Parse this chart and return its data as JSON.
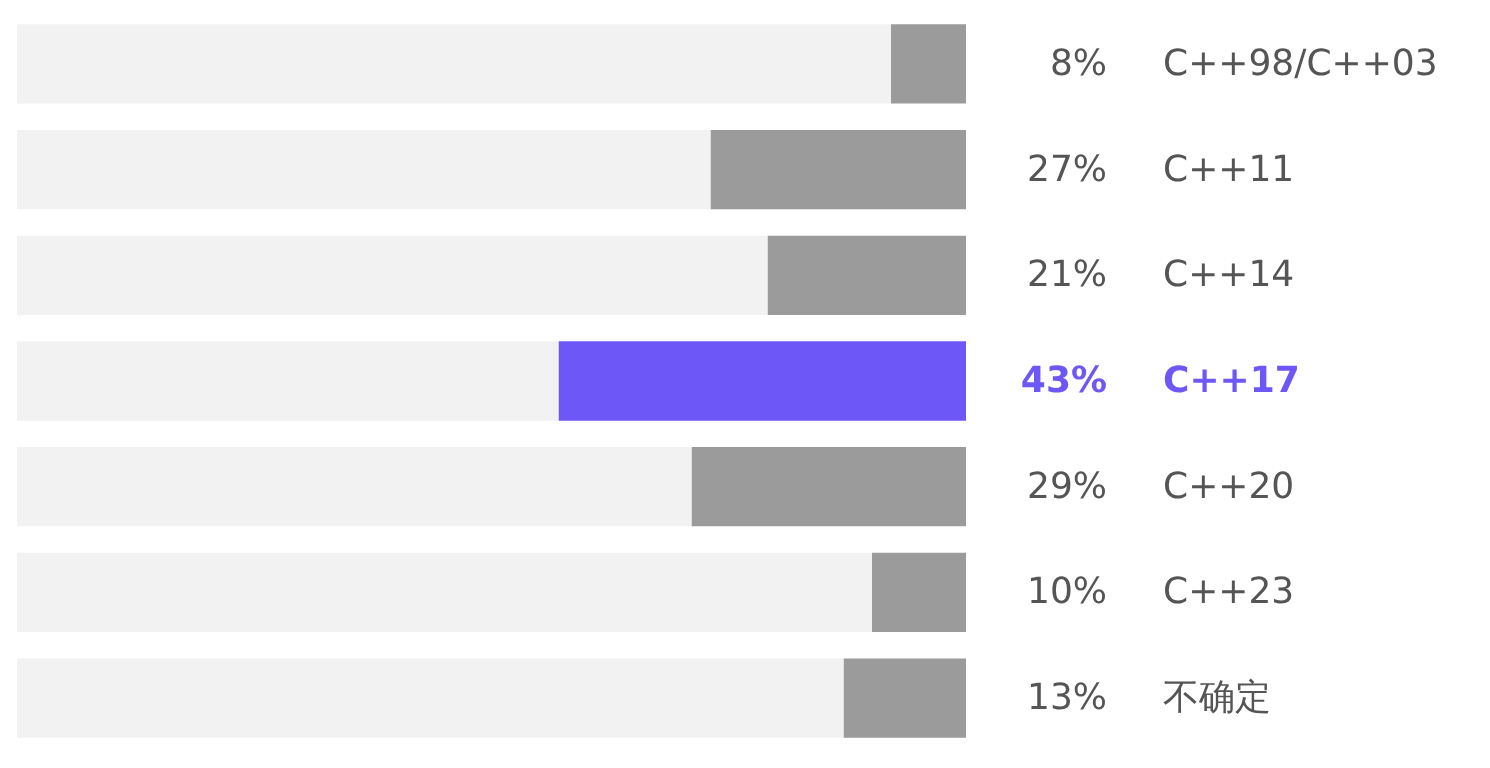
{
  "chart_data": {
    "type": "bar",
    "orientation": "horizontal",
    "stacked": true,
    "categories": [
      "C++98/C++03",
      "C++11",
      "C++14",
      "C++17",
      "C++20",
      "C++23",
      "不确定"
    ],
    "series": [
      {
        "color": "#9b9b9b",
        "colors": [
          "#9b9b9b",
          "#9b9b9b",
          "#9b9b9b",
          "#6e57f7",
          "#9b9b9b",
          "#9b9b9b",
          "#9b9b9b"
        ],
        "values": [
          8,
          27,
          21,
          43,
          29,
          10,
          13
        ],
        "value_labels": [
          "8%",
          "27%",
          "21%",
          "43%",
          "29%",
          "10%",
          "13%"
        ]
      },
      {
        "color": "#f2f2f2",
        "values": [
          92,
          73,
          79,
          57,
          71,
          90,
          87
        ]
      }
    ],
    "xlim": [
      100,
      0
    ],
    "grid": false,
    "tick_labels": false
  }
}
